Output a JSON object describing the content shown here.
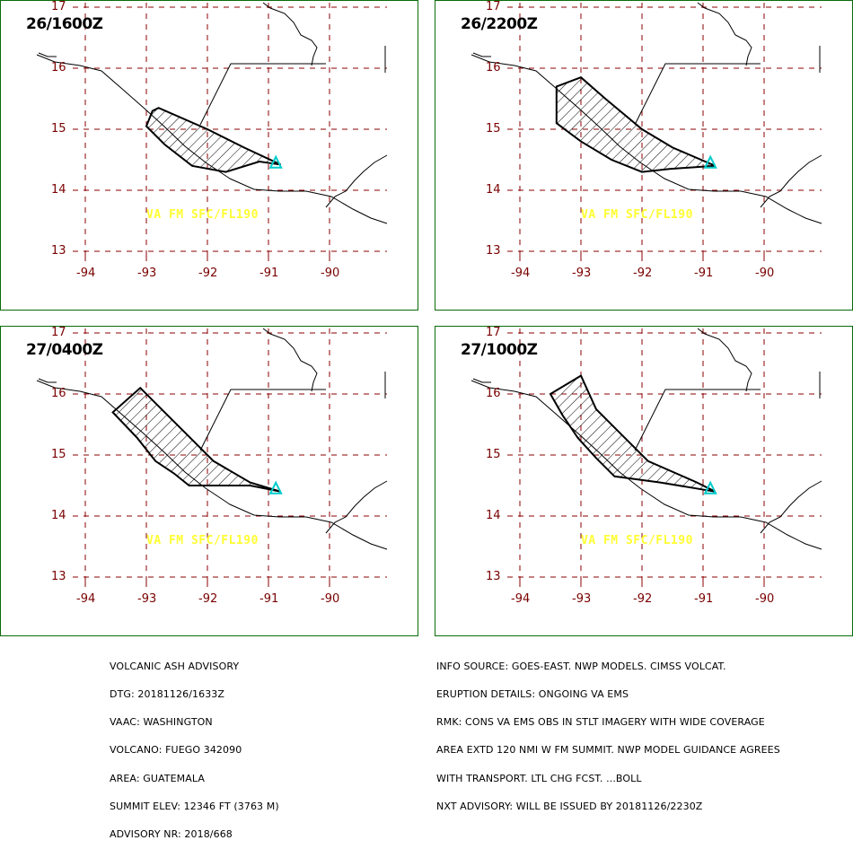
{
  "panels": [
    {
      "title": "26/1600Z",
      "label": "VA FM SFC/FL190",
      "polygon": [
        [
          -92.9,
          15.3
        ],
        [
          -93.0,
          15.05
        ],
        [
          -92.7,
          14.75
        ],
        [
          -92.25,
          14.4
        ],
        [
          -91.7,
          14.3
        ],
        [
          -91.15,
          14.47
        ],
        [
          -90.8,
          14.42
        ],
        [
          -91.4,
          14.7
        ],
        [
          -92.0,
          15.0
        ],
        [
          -92.8,
          15.35
        ]
      ]
    },
    {
      "title": "26/2200Z",
      "label": "VA FM SFC/FL190",
      "polygon": [
        [
          -93.4,
          15.7
        ],
        [
          -93.4,
          15.1
        ],
        [
          -93.0,
          14.8
        ],
        [
          -92.5,
          14.5
        ],
        [
          -92.0,
          14.3
        ],
        [
          -91.55,
          14.35
        ],
        [
          -90.8,
          14.4
        ],
        [
          -91.5,
          14.7
        ],
        [
          -92.0,
          15.0
        ],
        [
          -92.6,
          15.5
        ],
        [
          -93.0,
          15.85
        ]
      ]
    },
    {
      "title": "27/0400Z",
      "label": "VA FM SFC/FL190",
      "polygon": [
        [
          -93.55,
          15.7
        ],
        [
          -93.15,
          15.28
        ],
        [
          -92.85,
          14.9
        ],
        [
          -92.55,
          14.7
        ],
        [
          -92.3,
          14.5
        ],
        [
          -91.3,
          14.5
        ],
        [
          -90.8,
          14.4
        ],
        [
          -91.3,
          14.55
        ],
        [
          -91.9,
          14.9
        ],
        [
          -92.3,
          15.3
        ],
        [
          -92.7,
          15.7
        ],
        [
          -93.1,
          16.1
        ]
      ]
    },
    {
      "title": "27/1000Z",
      "label": "VA FM SFC/FL190",
      "polygon": [
        [
          -93.5,
          16.0
        ],
        [
          -93.3,
          15.65
        ],
        [
          -93.05,
          15.28
        ],
        [
          -92.75,
          14.95
        ],
        [
          -92.45,
          14.65
        ],
        [
          -91.7,
          14.55
        ],
        [
          -90.8,
          14.4
        ],
        [
          -91.1,
          14.55
        ],
        [
          -91.9,
          14.9
        ],
        [
          -92.4,
          15.4
        ],
        [
          -92.75,
          15.75
        ],
        [
          -93.0,
          16.3
        ]
      ]
    }
  ],
  "lat_labels": [
    "17",
    "16",
    "15",
    "14",
    "13"
  ],
  "lon_labels": [
    "-94",
    "-93",
    "-92",
    "-91",
    "-90"
  ],
  "colors": {
    "grid": "#8b0000",
    "ash_outline": "#000000",
    "volcano_marker": "#00cccc",
    "fl_text": "#ffff33",
    "panel_border": "#0a6b0a"
  },
  "advisory_left": [
    "VOLCANIC ASH ADVISORY",
    "DTG: 20181126/1633Z",
    "VAAC: WASHINGTON",
    "VOLCANO: FUEGO 342090",
    "AREA: GUATEMALA",
    "SUMMIT ELEV: 12346 FT (3763 M)",
    "ADVISORY NR: 2018/668"
  ],
  "advisory_right": [
    "INFO SOURCE: GOES-EAST. NWP MODELS. CIMSS VOLCAT.",
    "ERUPTION DETAILS: ONGOING VA EMS",
    "RMK: CONS VA EMS OBS IN STLT IMAGERY WITH WIDE COVERAGE",
    "AREA EXTD 120 NMI W FM SUMMIT. NWP MODEL GUIDANCE AGREES",
    "WITH TRANSPORT. LTL CHG FCST. ...BOLL",
    "NXT ADVISORY: WILL BE ISSUED BY 20181126/2230Z"
  ]
}
